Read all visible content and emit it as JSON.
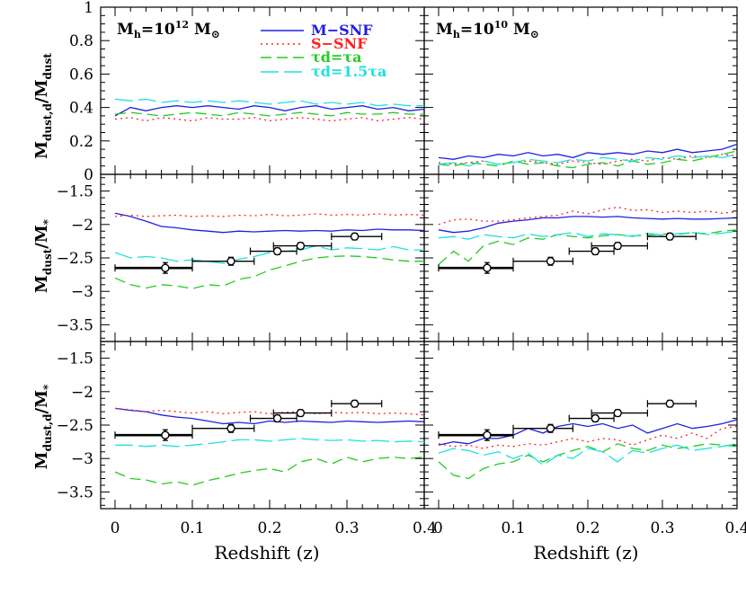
{
  "chart_data": {
    "type": "line",
    "xlabel": "Redshift (z)",
    "xlim": [
      0,
      0.4
    ],
    "x_ticks": [
      "0",
      "0.1",
      "0.2",
      "0.3",
      "0.4"
    ],
    "columns": [
      {
        "label": "M_h=10^12 M_sun",
        "text_main": "M",
        "text_sub": "h",
        "text_eq": "=10",
        "text_exp": "12",
        "text_unit": " M",
        "text_sun": "⊙"
      },
      {
        "label": "M_h=10^10 M_sun",
        "text_main": "M",
        "text_sub": "h",
        "text_eq": "=10",
        "text_exp": "10",
        "text_unit": " M",
        "text_sun": "⊙"
      }
    ],
    "rows": [
      {
        "ylabel_main": "M",
        "ylabel_sub": "dust,d",
        "ylabel_rest": "/M",
        "ylabel_sub2": "dust",
        "ylim": [
          0,
          1
        ],
        "yticks": [
          {
            "v": 0,
            "t": "0"
          },
          {
            "v": 0.2,
            "t": "0.2"
          },
          {
            "v": 0.4,
            "t": "0.4"
          },
          {
            "v": 0.6,
            "t": "0.6"
          },
          {
            "v": 0.8,
            "t": "0.8"
          },
          {
            "v": 1.0,
            "t": "1"
          }
        ]
      },
      {
        "ylabel_main": "M",
        "ylabel_sub": "dust",
        "ylabel_rest": "/M",
        "ylabel_sub2": "*",
        "ylim": [
          -3.75,
          -1.25
        ],
        "yticks": [
          {
            "v": -1.5,
            "t": "−1.5"
          },
          {
            "v": -2,
            "t": "−2"
          },
          {
            "v": -2.5,
            "t": "−2.5"
          },
          {
            "v": -3,
            "t": "−3"
          },
          {
            "v": -3.5,
            "t": "−3.5"
          }
        ]
      },
      {
        "ylabel_main": "M",
        "ylabel_sub": "dust,d",
        "ylabel_rest": "/M",
        "ylabel_sub2": "*",
        "ylim": [
          -3.75,
          -1.25
        ],
        "yticks": [
          {
            "v": -1.5,
            "t": "−1.5"
          },
          {
            "v": -2,
            "t": "−2"
          },
          {
            "v": -2.5,
            "t": "−2.5"
          },
          {
            "v": -3,
            "t": "−3"
          },
          {
            "v": -3.5,
            "t": "−3.5"
          }
        ]
      }
    ],
    "legend": [
      {
        "name": "M−SNF",
        "color": "#2020e0",
        "dash": ""
      },
      {
        "name": "S−SNF",
        "color": "#ff2020",
        "dash": "2,4"
      },
      {
        "name": "τd=τa",
        "color": "#22cc22",
        "dash": "12,6"
      },
      {
        "name": "τd=1.5τa",
        "color": "#20e0e0",
        "dash": "20,6"
      }
    ],
    "x": [
      0,
      0.02,
      0.04,
      0.06,
      0.08,
      0.1,
      0.12,
      0.14,
      0.16,
      0.18,
      0.2,
      0.22,
      0.24,
      0.26,
      0.28,
      0.3,
      0.32,
      0.34,
      0.36,
      0.38,
      0.4
    ],
    "panels": [
      {
        "row": 0,
        "col": 0,
        "series": [
          [
            0.35,
            0.4,
            0.38,
            0.4,
            0.41,
            0.4,
            0.41,
            0.4,
            0.39,
            0.41,
            0.4,
            0.38,
            0.4,
            0.41,
            0.39,
            0.4,
            0.41,
            0.39,
            0.4,
            0.38,
            0.39
          ],
          [
            0.33,
            0.34,
            0.32,
            0.34,
            0.33,
            0.32,
            0.34,
            0.33,
            0.33,
            0.34,
            0.32,
            0.33,
            0.34,
            0.33,
            0.32,
            0.33,
            0.34,
            0.32,
            0.33,
            0.34,
            0.33
          ],
          [
            0.36,
            0.37,
            0.36,
            0.35,
            0.36,
            0.37,
            0.36,
            0.35,
            0.37,
            0.36,
            0.35,
            0.36,
            0.37,
            0.36,
            0.35,
            0.37,
            0.36,
            0.36,
            0.37,
            0.36,
            0.36
          ],
          [
            0.45,
            0.44,
            0.45,
            0.43,
            0.44,
            0.43,
            0.44,
            0.43,
            0.44,
            0.43,
            0.42,
            0.43,
            0.44,
            0.42,
            0.43,
            0.42,
            0.43,
            0.41,
            0.42,
            0.41,
            0.41
          ]
        ]
      },
      {
        "row": 0,
        "col": 1,
        "series": [
          [
            0.1,
            0.09,
            0.11,
            0.1,
            0.12,
            0.11,
            0.13,
            0.11,
            0.12,
            0.1,
            0.13,
            0.12,
            0.13,
            0.12,
            0.14,
            0.13,
            0.15,
            0.13,
            0.14,
            0.15,
            0.18
          ],
          [
            0.07,
            0.06,
            0.07,
            0.08,
            0.06,
            0.07,
            0.08,
            0.07,
            0.06,
            0.08,
            0.07,
            0.06,
            0.08,
            0.09,
            0.08,
            0.1,
            0.09,
            0.11,
            0.1,
            0.12,
            0.11
          ],
          [
            0.06,
            0.05,
            0.07,
            0.06,
            0.05,
            0.08,
            0.06,
            0.07,
            0.05,
            0.04,
            0.06,
            0.07,
            0.05,
            0.08,
            0.06,
            0.07,
            0.09,
            0.08,
            0.1,
            0.12,
            0.14
          ],
          [
            0.06,
            0.07,
            0.05,
            0.08,
            0.06,
            0.07,
            0.09,
            0.08,
            0.07,
            0.09,
            0.08,
            0.1,
            0.09,
            0.08,
            0.1,
            0.09,
            0.11,
            0.1,
            0.11,
            0.1,
            0.12
          ]
        ]
      },
      {
        "row": 1,
        "col": 0,
        "series": [
          [
            -1.83,
            -1.88,
            -1.95,
            -2.03,
            -2.05,
            -2.08,
            -2.1,
            -2.12,
            -2.1,
            -2.11,
            -2.1,
            -2.09,
            -2.1,
            -2.09,
            -2.1,
            -2.08,
            -2.09,
            -2.07,
            -2.08,
            -2.08,
            -2.09
          ],
          [
            -1.88,
            -1.86,
            -1.88,
            -1.87,
            -1.86,
            -1.88,
            -1.87,
            -1.88,
            -1.86,
            -1.87,
            -1.85,
            -1.87,
            -1.86,
            -1.84,
            -1.86,
            -1.85,
            -1.86,
            -1.84,
            -1.86,
            -1.85,
            -1.86
          ],
          [
            -2.8,
            -2.9,
            -2.95,
            -2.9,
            -2.92,
            -2.96,
            -2.9,
            -2.92,
            -2.82,
            -2.78,
            -2.68,
            -2.62,
            -2.55,
            -2.5,
            -2.48,
            -2.47,
            -2.48,
            -2.5,
            -2.53,
            -2.55,
            -2.55
          ],
          [
            -2.42,
            -2.5,
            -2.48,
            -2.5,
            -2.55,
            -2.53,
            -2.55,
            -2.58,
            -2.52,
            -2.48,
            -2.42,
            -2.4,
            -2.38,
            -2.32,
            -2.38,
            -2.35,
            -2.36,
            -2.38,
            -2.33,
            -2.38,
            -2.38
          ]
        ]
      },
      {
        "row": 1,
        "col": 1,
        "series": [
          [
            -2.08,
            -2.12,
            -2.1,
            -2.05,
            -1.98,
            -1.95,
            -1.93,
            -1.9,
            -1.9,
            -1.88,
            -1.88,
            -1.89,
            -1.88,
            -1.9,
            -1.91,
            -1.92,
            -1.91,
            -1.92,
            -1.92,
            -1.91,
            -1.9
          ],
          [
            -2.0,
            -1.93,
            -1.92,
            -1.95,
            -1.95,
            -1.93,
            -1.9,
            -1.88,
            -1.86,
            -1.8,
            -1.84,
            -1.78,
            -1.74,
            -1.79,
            -1.78,
            -1.82,
            -1.8,
            -1.82,
            -1.8,
            -1.83,
            -1.81
          ],
          [
            -2.6,
            -2.4,
            -2.55,
            -2.32,
            -2.25,
            -2.3,
            -2.2,
            -2.22,
            -2.15,
            -2.18,
            -2.2,
            -2.17,
            -2.15,
            -2.17,
            -2.16,
            -2.14,
            -2.15,
            -2.12,
            -2.14,
            -2.1,
            -2.08
          ],
          [
            -2.2,
            -2.18,
            -2.22,
            -2.15,
            -2.18,
            -2.2,
            -2.14,
            -2.18,
            -2.15,
            -2.12,
            -2.18,
            -2.14,
            -2.15,
            -2.18,
            -2.13,
            -2.16,
            -2.14,
            -2.12,
            -2.15,
            -2.13,
            -2.1
          ]
        ]
      },
      {
        "row": 2,
        "col": 0,
        "series": [
          [
            -2.25,
            -2.28,
            -2.3,
            -2.35,
            -2.38,
            -2.4,
            -2.44,
            -2.48,
            -2.46,
            -2.48,
            -2.44,
            -2.46,
            -2.44,
            -2.45,
            -2.46,
            -2.44,
            -2.45,
            -2.46,
            -2.45,
            -2.44,
            -2.45
          ],
          [
            -2.25,
            -2.27,
            -2.3,
            -2.28,
            -2.3,
            -2.32,
            -2.3,
            -2.33,
            -2.31,
            -2.3,
            -2.33,
            -2.31,
            -2.3,
            -2.33,
            -2.31,
            -2.32,
            -2.31,
            -2.33,
            -2.32,
            -2.33,
            -2.35
          ],
          [
            -3.2,
            -3.3,
            -3.32,
            -3.38,
            -3.35,
            -3.4,
            -3.33,
            -3.28,
            -3.22,
            -3.18,
            -3.15,
            -3.2,
            -3.05,
            -3.0,
            -3.08,
            -2.98,
            -3.05,
            -3.0,
            -2.98,
            -3.0,
            -2.98
          ],
          [
            -2.8,
            -2.8,
            -2.82,
            -2.8,
            -2.82,
            -2.8,
            -2.78,
            -2.75,
            -2.72,
            -2.72,
            -2.74,
            -2.72,
            -2.7,
            -2.72,
            -2.73,
            -2.72,
            -2.74,
            -2.73,
            -2.75,
            -2.74,
            -2.75
          ]
        ]
      },
      {
        "row": 2,
        "col": 1,
        "series": [
          [
            -2.8,
            -2.75,
            -2.78,
            -2.7,
            -2.7,
            -2.65,
            -2.55,
            -2.62,
            -2.52,
            -2.48,
            -2.52,
            -2.48,
            -2.55,
            -2.5,
            -2.62,
            -2.55,
            -2.48,
            -2.55,
            -2.52,
            -2.48,
            -2.42
          ],
          [
            -2.78,
            -2.82,
            -2.8,
            -2.85,
            -2.8,
            -2.82,
            -2.78,
            -2.8,
            -2.75,
            -2.7,
            -2.75,
            -2.7,
            -2.72,
            -2.8,
            -2.72,
            -2.65,
            -2.7,
            -2.62,
            -2.7,
            -2.55,
            -2.52
          ],
          [
            -3.05,
            -3.25,
            -3.3,
            -3.15,
            -3.08,
            -3.05,
            -2.95,
            -3.05,
            -2.95,
            -2.88,
            -2.82,
            -2.9,
            -2.78,
            -2.85,
            -2.88,
            -2.8,
            -2.85,
            -2.82,
            -2.78,
            -2.8,
            -2.82
          ],
          [
            -2.92,
            -2.85,
            -2.88,
            -2.95,
            -2.9,
            -3.0,
            -2.92,
            -3.1,
            -2.95,
            -3.0,
            -2.85,
            -2.9,
            -3.05,
            -2.88,
            -2.92,
            -2.85,
            -2.8,
            -2.88,
            -2.85,
            -2.82,
            -2.78
          ]
        ]
      }
    ],
    "observations": [
      {
        "x": 0.065,
        "xerr": [
          0.065,
          0.035
        ],
        "y": -2.65,
        "yerr": 0.08,
        "bold": true
      },
      {
        "x": 0.15,
        "xerr": [
          0.05,
          0.03
        ],
        "y": -2.55,
        "yerr": 0.06,
        "bold": false
      },
      {
        "x": 0.21,
        "xerr": [
          0.035,
          0.025
        ],
        "y": -2.4,
        "yerr": 0.05,
        "bold": false
      },
      {
        "x": 0.24,
        "xerr": [
          0.035,
          0.04
        ],
        "y": -2.32,
        "yerr": 0.05,
        "bold": false
      },
      {
        "x": 0.31,
        "xerr": [
          0.03,
          0.035
        ],
        "y": -2.18,
        "yerr": 0.05,
        "bold": false
      }
    ]
  }
}
